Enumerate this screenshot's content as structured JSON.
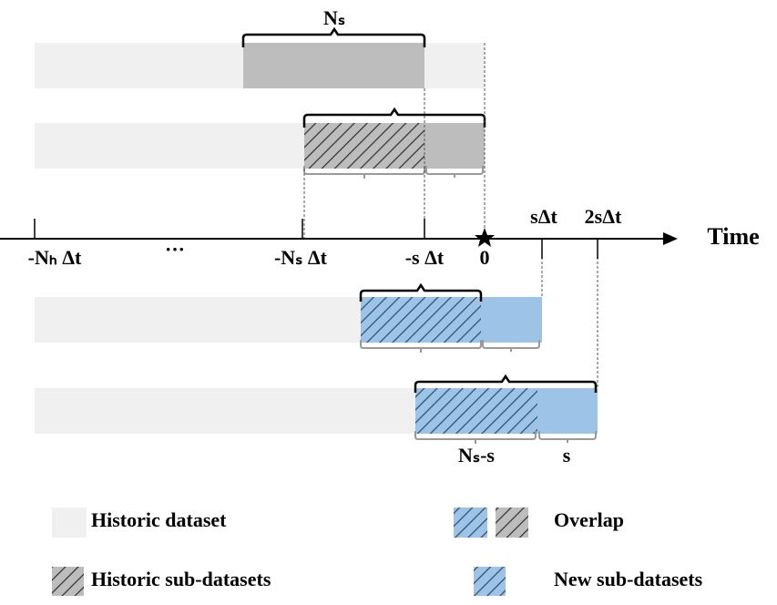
{
  "diagram": {
    "top_brace_label": "Nₛ",
    "axis": {
      "labels": [
        "-Nₕ Δt",
        "···",
        "-Nₛ Δt",
        "-s Δt",
        "0",
        "sΔt",
        "2sΔt"
      ],
      "title": "Time"
    },
    "bottom_labels": [
      "Nₛ-s",
      "s"
    ],
    "legend": [
      "Historic dataset",
      "Overlap",
      "Historic sub-datasets",
      "New sub-datasets"
    ]
  }
}
